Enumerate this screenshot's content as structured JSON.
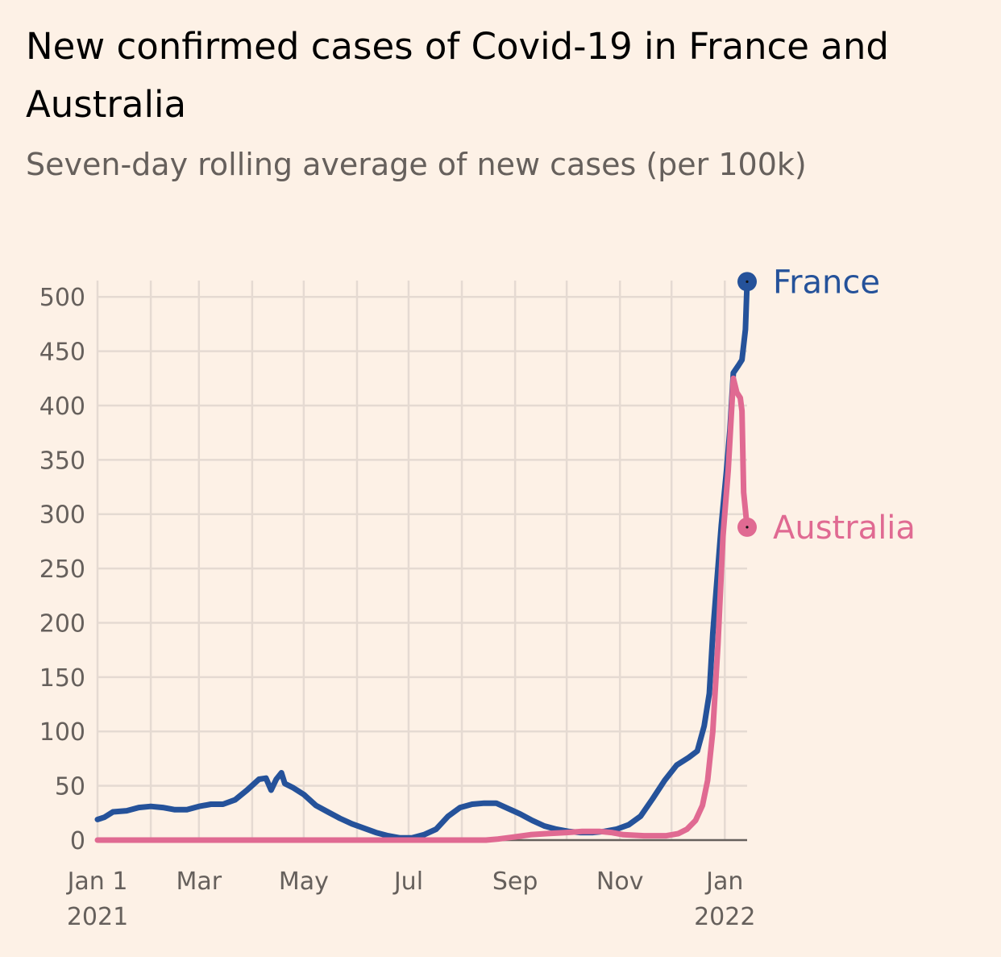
{
  "title": "New confirmed cases of Covid-19 in France and Australia",
  "subtitle": "Seven-day rolling average of new cases (per 100k)",
  "colors": {
    "background": "#fdf1e6",
    "grid": "#e5dad2",
    "baseline": "#66605c",
    "text_muted": "#66605c",
    "france": "#25529a",
    "australia": "#e06a92"
  },
  "chart_data": {
    "type": "line",
    "title": "New confirmed cases of Covid-19 in France and Australia",
    "subtitle": "Seven-day rolling average of new cases (per 100k)",
    "xlabel": "",
    "ylabel": "",
    "xlim": [
      "2021-01-01",
      "2022-01-14"
    ],
    "ylim": [
      0,
      515
    ],
    "grid": true,
    "legend": "direct labels at line ends",
    "y_ticks": [
      "0",
      "50",
      "100",
      "150",
      "200",
      "250",
      "300",
      "350",
      "400",
      "450",
      "500"
    ],
    "x_ticks": [
      {
        "date": "2021-01-01",
        "label": "Jan 1",
        "label2": "2021"
      },
      {
        "date": "2021-02-01",
        "label": "",
        "label2": ""
      },
      {
        "date": "2021-03-01",
        "label": "Mar",
        "label2": ""
      },
      {
        "date": "2021-04-01",
        "label": "",
        "label2": ""
      },
      {
        "date": "2021-05-01",
        "label": "May",
        "label2": ""
      },
      {
        "date": "2021-06-01",
        "label": "",
        "label2": ""
      },
      {
        "date": "2021-07-01",
        "label": "Jul",
        "label2": ""
      },
      {
        "date": "2021-08-01",
        "label": "",
        "label2": ""
      },
      {
        "date": "2021-09-01",
        "label": "Sep",
        "label2": ""
      },
      {
        "date": "2021-10-01",
        "label": "",
        "label2": ""
      },
      {
        "date": "2021-11-01",
        "label": "Nov",
        "label2": ""
      },
      {
        "date": "2021-12-01",
        "label": "",
        "label2": ""
      },
      {
        "date": "2022-01-01",
        "label": "Jan",
        "label2": "2022"
      }
    ],
    "series": [
      {
        "name": "France",
        "color": "#25529a",
        "points": [
          [
            "2021-01-01",
            19
          ],
          [
            "2021-01-05",
            21
          ],
          [
            "2021-01-10",
            26
          ],
          [
            "2021-01-18",
            27
          ],
          [
            "2021-01-25",
            30
          ],
          [
            "2021-02-01",
            31
          ],
          [
            "2021-02-08",
            30
          ],
          [
            "2021-02-15",
            28
          ],
          [
            "2021-02-22",
            28
          ],
          [
            "2021-03-01",
            31
          ],
          [
            "2021-03-08",
            33
          ],
          [
            "2021-03-15",
            33
          ],
          [
            "2021-03-22",
            37
          ],
          [
            "2021-03-29",
            46
          ],
          [
            "2021-04-05",
            56
          ],
          [
            "2021-04-09",
            57
          ],
          [
            "2021-04-12",
            46
          ],
          [
            "2021-04-15",
            56
          ],
          [
            "2021-04-18",
            62
          ],
          [
            "2021-04-20",
            52
          ],
          [
            "2021-04-25",
            48
          ],
          [
            "2021-05-01",
            42
          ],
          [
            "2021-05-08",
            32
          ],
          [
            "2021-05-15",
            26
          ],
          [
            "2021-05-22",
            20
          ],
          [
            "2021-05-29",
            15
          ],
          [
            "2021-06-05",
            11
          ],
          [
            "2021-06-12",
            7
          ],
          [
            "2021-06-19",
            4
          ],
          [
            "2021-06-26",
            2
          ],
          [
            "2021-07-03",
            2
          ],
          [
            "2021-07-10",
            5
          ],
          [
            "2021-07-17",
            10
          ],
          [
            "2021-07-24",
            22
          ],
          [
            "2021-07-31",
            30
          ],
          [
            "2021-08-07",
            33
          ],
          [
            "2021-08-14",
            34
          ],
          [
            "2021-08-21",
            34
          ],
          [
            "2021-08-28",
            29
          ],
          [
            "2021-09-04",
            24
          ],
          [
            "2021-09-11",
            18
          ],
          [
            "2021-09-18",
            13
          ],
          [
            "2021-09-25",
            10
          ],
          [
            "2021-10-02",
            8
          ],
          [
            "2021-10-09",
            7
          ],
          [
            "2021-10-16",
            7
          ],
          [
            "2021-10-23",
            8
          ],
          [
            "2021-10-30",
            10
          ],
          [
            "2021-11-06",
            14
          ],
          [
            "2021-11-13",
            22
          ],
          [
            "2021-11-20",
            38
          ],
          [
            "2021-11-27",
            55
          ],
          [
            "2021-12-04",
            69
          ],
          [
            "2021-12-11",
            76
          ],
          [
            "2021-12-16",
            82
          ],
          [
            "2021-12-20",
            105
          ],
          [
            "2021-12-23",
            135
          ],
          [
            "2021-12-25",
            190
          ],
          [
            "2021-12-27",
            230
          ],
          [
            "2021-12-30",
            290
          ],
          [
            "2022-01-02",
            340
          ],
          [
            "2022-01-04",
            378
          ],
          [
            "2022-01-06",
            430
          ],
          [
            "2022-01-09",
            437
          ],
          [
            "2022-01-11",
            442
          ],
          [
            "2022-01-13",
            470
          ],
          [
            "2022-01-14",
            514
          ]
        ]
      },
      {
        "name": "Australia",
        "color": "#e06a92",
        "points": [
          [
            "2021-01-01",
            0
          ],
          [
            "2021-08-15",
            0
          ],
          [
            "2021-08-22",
            1
          ],
          [
            "2021-09-01",
            3
          ],
          [
            "2021-09-10",
            5
          ],
          [
            "2021-09-20",
            6
          ],
          [
            "2021-10-01",
            7
          ],
          [
            "2021-10-10",
            8
          ],
          [
            "2021-10-20",
            8
          ],
          [
            "2021-10-27",
            7
          ],
          [
            "2021-11-03",
            5
          ],
          [
            "2021-11-15",
            4
          ],
          [
            "2021-11-28",
            4
          ],
          [
            "2021-12-05",
            6
          ],
          [
            "2021-12-10",
            10
          ],
          [
            "2021-12-15",
            18
          ],
          [
            "2021-12-19",
            32
          ],
          [
            "2021-12-22",
            55
          ],
          [
            "2021-12-25",
            100
          ],
          [
            "2021-12-28",
            180
          ],
          [
            "2021-12-31",
            280
          ],
          [
            "2022-01-03",
            340
          ],
          [
            "2022-01-06",
            425
          ],
          [
            "2022-01-08",
            412
          ],
          [
            "2022-01-10",
            407
          ],
          [
            "2022-01-11",
            395
          ],
          [
            "2022-01-12",
            320
          ],
          [
            "2022-01-14",
            288
          ]
        ]
      }
    ]
  }
}
